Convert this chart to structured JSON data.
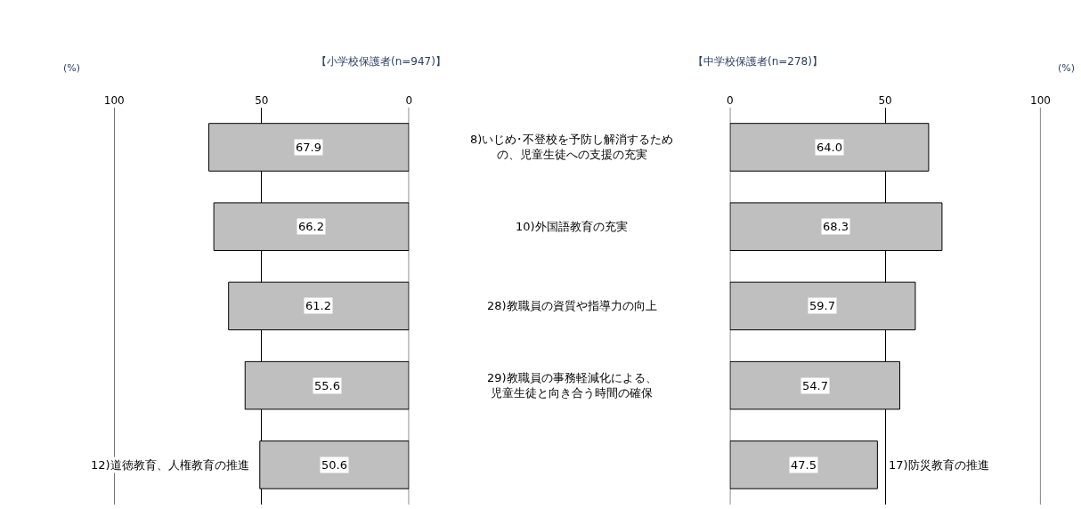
{
  "chart_data": [
    {
      "type": "bar",
      "orientation": "horizontal",
      "title": "【小学校保護者(n=947)】",
      "xlabel": "(%)",
      "categories": [
        "8)いじめ･不登校を予防し解消するための、児童生徒への支援の充実",
        "10)外国語教育の充実",
        "28)教職員の資質や指導力の向上",
        "29)教職員の事務軽減化による、児童生徒と向き合う時間の確保",
        "12)道徳教育、人権教育の推進"
      ],
      "values": [
        67.9,
        66.2,
        61.2,
        55.6,
        50.6
      ],
      "value_labels": [
        "67.9",
        "66.2",
        "61.2",
        "55.6",
        "50.6"
      ],
      "color": "#bfbfbf",
      "xlim": [
        100,
        0
      ],
      "xticks": [
        100,
        50,
        0
      ],
      "grid": "x"
    },
    {
      "type": "bar",
      "orientation": "horizontal",
      "title": "【中学校保護者(n=278)】",
      "xlabel": "(%)",
      "categories": [
        null,
        null,
        null,
        null,
        "17)防災教育の推進"
      ],
      "values": [
        64.0,
        68.3,
        59.7,
        54.7,
        47.5
      ],
      "value_labels": [
        "64.0",
        "68.3",
        "59.7",
        "54.7",
        "47.5"
      ],
      "color": "#bfbfbf",
      "xlim": [
        0,
        100
      ],
      "xticks": [
        0,
        50,
        100
      ],
      "grid": "x"
    }
  ]
}
